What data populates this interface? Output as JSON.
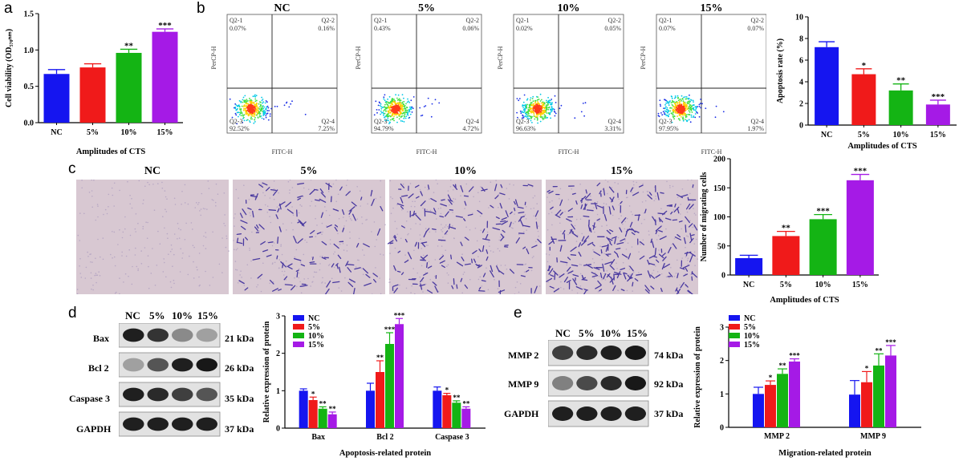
{
  "colors": {
    "NC": "#1515f0",
    "5%": "#f01a1a",
    "10%": "#14b414",
    "15%": "#a51ae6"
  },
  "panels": {
    "a": "a",
    "b": "b",
    "c": "c",
    "d": "d",
    "e": "e"
  },
  "groups": [
    "NC",
    "5%",
    "10%",
    "15%"
  ],
  "flow": {
    "panels": [
      {
        "title": "NC",
        "q1": "Q2-1",
        "q1v": "0.07%",
        "q2": "Q2-2",
        "q2v": "0.16%",
        "q3": "Q2-3",
        "q3v": "92.52%",
        "q4": "Q2-4",
        "q4v": "7.25%"
      },
      {
        "title": "5%",
        "q1": "Q2-1",
        "q1v": "0.43%",
        "q2": "Q2-2",
        "q2v": "0.06%",
        "q3": "Q2-3",
        "q3v": "94.79%",
        "q4": "Q2-4",
        "q4v": "4.72%"
      },
      {
        "title": "10%",
        "q1": "Q2-1",
        "q1v": "0.02%",
        "q2": "Q2-2",
        "q2v": "0.05%",
        "q3": "Q2-3",
        "q3v": "96.63%",
        "q4": "Q2-4",
        "q4v": "3.31%"
      },
      {
        "title": "15%",
        "q1": "Q2-1",
        "q1v": "0.07%",
        "q2": "Q2-2",
        "q2v": "0.07%",
        "q3": "Q2-3",
        "q3v": "97.95%",
        "q4": "Q2-4",
        "q4v": "1.97%"
      }
    ],
    "xlabel": "FITC-H",
    "ylabel": "PerCP-H"
  },
  "transwell": {
    "titles": [
      "NC",
      "5%",
      "10%",
      "15%"
    ]
  },
  "blot_d": {
    "lanes": [
      "NC",
      "5%",
      "10%",
      "15%"
    ],
    "rows": [
      {
        "name": "Bax",
        "kda": "21 kDa"
      },
      {
        "name": "Bcl 2",
        "kda": "26 kDa"
      },
      {
        "name": "Caspase 3",
        "kda": "35 kDa"
      },
      {
        "name": "GAPDH",
        "kda": "37 kDa"
      }
    ]
  },
  "blot_e": {
    "lanes": [
      "NC",
      "5%",
      "10%",
      "15%"
    ],
    "rows": [
      {
        "name": "MMP 2",
        "kda": "74 kDa"
      },
      {
        "name": "MMP 9",
        "kda": "92 kDa"
      },
      {
        "name": "GAPDH",
        "kda": "37 kDa"
      }
    ]
  },
  "chart_data": [
    {
      "id": "a",
      "type": "bar",
      "categories": [
        "NC",
        "5%",
        "10%",
        "15%"
      ],
      "values": [
        0.67,
        0.76,
        0.96,
        1.25
      ],
      "errors": [
        0.06,
        0.05,
        0.05,
        0.04
      ],
      "sig": [
        "",
        "",
        "**",
        "***"
      ],
      "ylabel": "Cell viability (OD₅₇₀ₙₘ)",
      "xlabel": "Amplitudes of CTS",
      "ylim": [
        0,
        1.5
      ],
      "ticks": [
        0,
        0.5,
        1.0,
        1.5
      ],
      "tick_labels": [
        "0.0",
        "0.5",
        "1.0",
        "1.5"
      ]
    },
    {
      "id": "b",
      "type": "bar",
      "categories": [
        "NC",
        "5%",
        "10%",
        "15%"
      ],
      "values": [
        7.2,
        4.7,
        3.2,
        1.9
      ],
      "errors": [
        0.5,
        0.5,
        0.6,
        0.4
      ],
      "sig": [
        "",
        "*",
        "**",
        "***"
      ],
      "ylabel": "Apoptosis rate (%)",
      "xlabel": "Amplitudes of CTS",
      "ylim": [
        0,
        10
      ],
      "ticks": [
        0,
        2,
        4,
        6,
        8,
        10
      ],
      "tick_labels": [
        "0",
        "2",
        "4",
        "6",
        "8",
        "10"
      ]
    },
    {
      "id": "c",
      "type": "bar",
      "categories": [
        "NC",
        "5%",
        "10%",
        "15%"
      ],
      "values": [
        29,
        67,
        96,
        163
      ],
      "errors": [
        5,
        8,
        8,
        10
      ],
      "sig": [
        "",
        "**",
        "***",
        "***"
      ],
      "ylabel": "Number of migrating cells",
      "xlabel": "Amplitudes of CTS",
      "ylim": [
        0,
        200
      ],
      "ticks": [
        0,
        50,
        100,
        150,
        200
      ],
      "tick_labels": [
        "0",
        "50",
        "100",
        "150",
        "200"
      ]
    },
    {
      "id": "d",
      "type": "bar",
      "categories": [
        "Bax",
        "Bcl 2",
        "Caspase 3"
      ],
      "series": [
        {
          "name": "NC",
          "values": [
            1.0,
            1.0,
            1.0
          ],
          "errors": [
            0.05,
            0.2,
            0.1
          ]
        },
        {
          "name": "5%",
          "values": [
            0.75,
            1.5,
            0.88
          ],
          "errors": [
            0.08,
            0.3,
            0.05
          ]
        },
        {
          "name": "10%",
          "values": [
            0.52,
            2.25,
            0.68
          ],
          "errors": [
            0.05,
            0.3,
            0.05
          ]
        },
        {
          "name": "15%",
          "values": [
            0.37,
            2.78,
            0.52
          ],
          "errors": [
            0.06,
            0.15,
            0.05
          ]
        }
      ],
      "sig": [
        [
          "",
          "*",
          "**",
          "**"
        ],
        [
          "",
          "**",
          "***",
          "***"
        ],
        [
          "",
          "*",
          "**",
          "**"
        ]
      ],
      "ylabel": "Relative expression of protein",
      "xlabel": "Apoptosis-related protein",
      "ylim": [
        0,
        3
      ],
      "ticks": [
        0,
        1,
        2,
        3
      ],
      "tick_labels": [
        "0",
        "1",
        "2",
        "3"
      ]
    },
    {
      "id": "e",
      "type": "bar",
      "categories": [
        "MMP 2",
        "MMP 9"
      ],
      "series": [
        {
          "name": "NC",
          "values": [
            1.0,
            0.98
          ],
          "errors": [
            0.2,
            0.42
          ]
        },
        {
          "name": "5%",
          "values": [
            1.27,
            1.35
          ],
          "errors": [
            0.12,
            0.32
          ]
        },
        {
          "name": "10%",
          "values": [
            1.6,
            1.85
          ],
          "errors": [
            0.15,
            0.35
          ]
        },
        {
          "name": "15%",
          "values": [
            1.97,
            2.15
          ],
          "errors": [
            0.08,
            0.3
          ]
        }
      ],
      "sig": [
        [
          "",
          "*",
          "**",
          "***"
        ],
        [
          "",
          "*",
          "**",
          "***"
        ]
      ],
      "ylabel": "Relative expression of protein",
      "xlabel": "Migration-related protein",
      "ylim": [
        0,
        3
      ],
      "ticks": [
        0,
        1,
        2,
        3
      ],
      "tick_labels": [
        "0",
        "1",
        "2",
        "3"
      ]
    }
  ]
}
